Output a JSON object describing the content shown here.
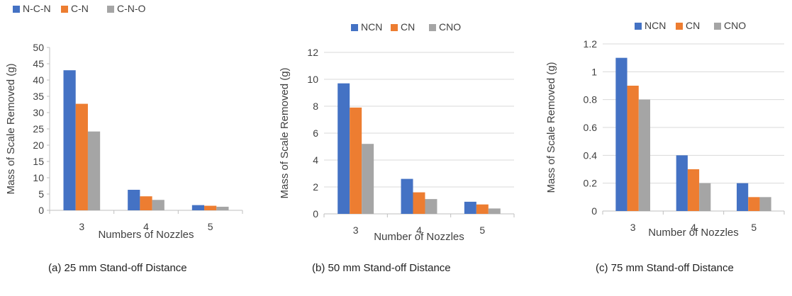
{
  "colors": {
    "series1": "#4472C4",
    "series2": "#ED7D31",
    "series3": "#A5A5A5",
    "grid": "#D9D9D9",
    "axis": "#BFBFBF",
    "text": "#404040"
  },
  "chart_data": [
    {
      "type": "bar",
      "categories": [
        "3",
        "4",
        "5"
      ],
      "series": [
        {
          "name": "N-C-N",
          "values": [
            43,
            6.3,
            1.6
          ]
        },
        {
          "name": "C-N",
          "values": [
            32.7,
            4.3,
            1.4
          ]
        },
        {
          "name": "C-N-O",
          "values": [
            24.2,
            3.2,
            1.1
          ]
        }
      ],
      "xlabel": "Numbers of Nozzles",
      "ylabel": "Mass of Scale Removed  (g)",
      "ylim": [
        0,
        50
      ],
      "yticks": [
        0,
        5,
        10,
        15,
        20,
        25,
        30,
        35,
        40,
        45,
        50
      ],
      "grid": false,
      "legend": "top-left",
      "caption": "(a) 25 mm Stand-off Distance"
    },
    {
      "type": "bar",
      "categories": [
        "3",
        "4",
        "5"
      ],
      "series": [
        {
          "name": "NCN",
          "values": [
            9.7,
            2.6,
            0.9
          ]
        },
        {
          "name": "CN",
          "values": [
            7.9,
            1.6,
            0.7
          ]
        },
        {
          "name": "CNO",
          "values": [
            5.2,
            1.1,
            0.4
          ]
        }
      ],
      "xlabel": "Number of Nozzles",
      "ylabel": "Mass of Scale Removed  (g)",
      "ylim": [
        0,
        12
      ],
      "yticks": [
        0,
        2,
        4,
        6,
        8,
        10,
        12
      ],
      "grid": true,
      "legend": "top",
      "caption": "(b) 50 mm Stand-off Distance"
    },
    {
      "type": "bar",
      "categories": [
        "3",
        "4",
        "5"
      ],
      "series": [
        {
          "name": "NCN",
          "values": [
            1.1,
            0.4,
            0.2
          ]
        },
        {
          "name": "CN",
          "values": [
            0.9,
            0.3,
            0.1
          ]
        },
        {
          "name": "CNO",
          "values": [
            0.8,
            0.2,
            0.1
          ]
        }
      ],
      "xlabel": "Number of Nozzles",
      "ylabel": "Mass of Scale Removed (g)",
      "ylim": [
        0,
        1.2
      ],
      "yticks": [
        "0",
        "0.2",
        "0.4",
        "0.6",
        "0.8",
        "1",
        "1.2"
      ],
      "grid": true,
      "legend": "top",
      "caption": "(c) 75 mm Stand-off Distance"
    }
  ]
}
